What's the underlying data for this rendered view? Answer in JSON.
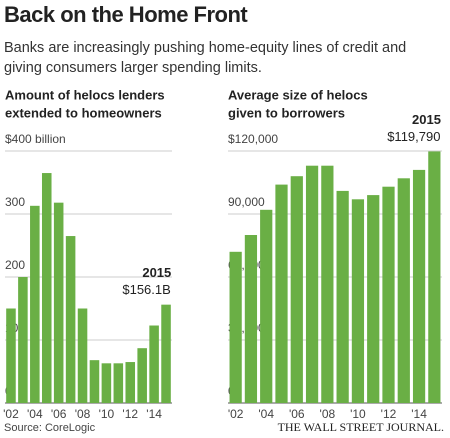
{
  "title": "Back on the Home Front",
  "subtitle": "Banks are increasingly pushing home-equity lines of credit and giving consumers larger spending limits.",
  "source": "Source: CoreLogic",
  "publisher": "THE WALL STREET JOURNAL.",
  "chart_data": [
    {
      "type": "bar",
      "title": [
        "Amount of helocs lenders",
        "extended to homeowners"
      ],
      "categories": [
        "'02",
        null,
        "'04",
        null,
        "'06",
        null,
        "'08",
        null,
        "'10",
        null,
        "'12",
        null,
        "'14",
        null
      ],
      "values": [
        150,
        200,
        313,
        365,
        318,
        265,
        150,
        68,
        63,
        63,
        65,
        87,
        123,
        156.1
      ],
      "value_labels": [
        null,
        null,
        null,
        null,
        null,
        null,
        null,
        null,
        null,
        null,
        null,
        null,
        null,
        "$156.1B"
      ],
      "annotation": "2015",
      "color": "#6aaf45",
      "ylim": [
        0,
        400
      ],
      "yticks": [
        0,
        100,
        200,
        300,
        {
          "value": 400,
          "label": "$400 billion"
        }
      ],
      "grid": true
    },
    {
      "type": "bar",
      "title": [
        "Average size of helocs",
        "given to borrowers"
      ],
      "categories": [
        "'02",
        null,
        "'04",
        null,
        "'06",
        null,
        "'08",
        null,
        "'10",
        null,
        "'12",
        null,
        "'14",
        null
      ],
      "values": [
        72000,
        80000,
        92000,
        104000,
        108000,
        113000,
        113000,
        101000,
        97000,
        99000,
        103000,
        107000,
        111000,
        119790
      ],
      "value_labels": [
        null,
        null,
        null,
        null,
        null,
        null,
        null,
        null,
        null,
        null,
        null,
        null,
        null,
        "$119,790"
      ],
      "annotation": "2015",
      "color": "#6aaf45",
      "ylim": [
        0,
        120000
      ],
      "yticks": [
        0,
        {
          "value": 30000,
          "label": "30,000"
        },
        {
          "value": 60000,
          "label": "60,000"
        },
        {
          "value": 90000,
          "label": "90,000"
        },
        {
          "value": 120000,
          "label": "$120,000"
        }
      ],
      "grid": true
    }
  ]
}
